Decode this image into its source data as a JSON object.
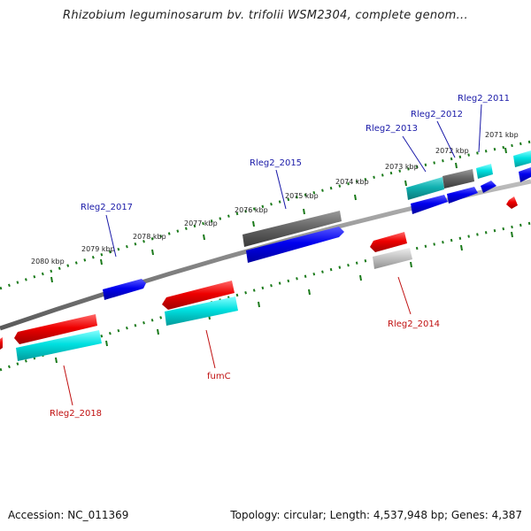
{
  "title": "Rhizobium leguminosarum bv. trifolii WSM2304, complete genom...",
  "footer": {
    "accession": "Accession: NC_011369",
    "summary": "Topology: circular; Length: 4,537,948 bp; Genes: 4,387"
  },
  "kbp_ticks": [
    "2080 kbp",
    "2079 kbp",
    "2078 kbp",
    "2077 kbp",
    "2076 kbp",
    "2075 kbp",
    "2074 kbp",
    "2073 kbp",
    "2072 kbp",
    "2071 kbp"
  ],
  "gene_labels": [
    {
      "text": "Rleg2_2017",
      "strand": "forward",
      "color": "#1a1aa8"
    },
    {
      "text": "Rleg2_2015",
      "strand": "forward",
      "color": "#1a1aa8"
    },
    {
      "text": "Rleg2_2013",
      "strand": "forward",
      "color": "#1a1aa8"
    },
    {
      "text": "Rleg2_2012",
      "strand": "forward",
      "color": "#1a1aa8"
    },
    {
      "text": "Rleg2_2011",
      "strand": "forward",
      "color": "#1a1aa8"
    },
    {
      "text": "Rleg2_2018",
      "strand": "reverse",
      "color": "#c01010"
    },
    {
      "text": "fumC",
      "strand": "reverse",
      "color": "#c01010"
    },
    {
      "text": "Rleg2_2014",
      "strand": "reverse",
      "color": "#c01010"
    }
  ],
  "colors": {
    "forward_gene": "#0000ee",
    "reverse_gene": "#ee0000",
    "cds_match": "#00cccc",
    "pseudo_gray": "#666666",
    "light_gray": "#bbbbbb",
    "backbone": "#888888",
    "tick_marks": "#1a7a1a"
  }
}
